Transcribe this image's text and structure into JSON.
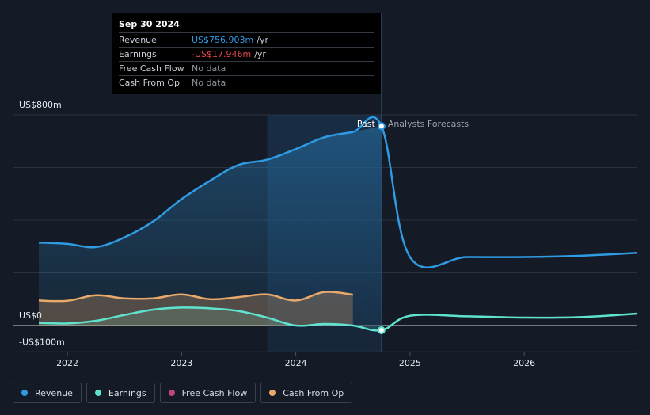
{
  "tooltip": {
    "date": "Sep 30 2024",
    "rows": [
      {
        "label": "Revenue",
        "value": "US$756.903m",
        "unit": "/yr",
        "color": "#2f9be3"
      },
      {
        "label": "Earnings",
        "value": "-US$17.946m",
        "unit": "/yr",
        "color": "#e8474d"
      },
      {
        "label": "Free Cash Flow",
        "value": "No data",
        "unit": "",
        "color": "#8b929c"
      },
      {
        "label": "Cash From Op",
        "value": "No data",
        "unit": "",
        "color": "#8b929c"
      }
    ]
  },
  "labels": {
    "past": "Past",
    "forecast": "Analysts Forecasts"
  },
  "legend": [
    {
      "label": "Revenue",
      "color": "#2f9be3"
    },
    {
      "label": "Earnings",
      "color": "#5fe3cf"
    },
    {
      "label": "Free Cash Flow",
      "color": "#c2457a"
    },
    {
      "label": "Cash From Op",
      "color": "#e8a96a"
    }
  ],
  "chart_data": {
    "type": "line",
    "y_tick_labels": [
      "US$800m",
      "US$0",
      "-US$100m"
    ],
    "ylim": [
      -100,
      800
    ],
    "x_tick_labels": [
      "2022",
      "2023",
      "2024",
      "2025",
      "2026"
    ],
    "past_end": 2024.75,
    "highlight_range": [
      2023.75,
      2024.75
    ],
    "series": [
      {
        "name": "Revenue",
        "color": "#2f9be3",
        "area": true,
        "points": [
          [
            2021.75,
            315
          ],
          [
            2022.0,
            310
          ],
          [
            2022.25,
            298
          ],
          [
            2022.5,
            335
          ],
          [
            2022.75,
            395
          ],
          [
            2023.0,
            480
          ],
          [
            2023.25,
            550
          ],
          [
            2023.5,
            610
          ],
          [
            2023.75,
            630
          ],
          [
            2024.0,
            670
          ],
          [
            2024.25,
            715
          ],
          [
            2024.5,
            735
          ],
          [
            2024.75,
            757
          ],
          [
            2025.0,
            260
          ],
          [
            2025.5,
            260
          ],
          [
            2026.0,
            260
          ],
          [
            2026.5,
            265
          ],
          [
            2026.99,
            276
          ]
        ]
      },
      {
        "name": "Earnings",
        "color": "#5fe3cf",
        "area": true,
        "points": [
          [
            2021.75,
            10
          ],
          [
            2022.0,
            8
          ],
          [
            2022.25,
            18
          ],
          [
            2022.5,
            40
          ],
          [
            2022.75,
            60
          ],
          [
            2023.0,
            68
          ],
          [
            2023.25,
            65
          ],
          [
            2023.5,
            55
          ],
          [
            2023.75,
            30
          ],
          [
            2024.0,
            0
          ],
          [
            2024.25,
            6
          ],
          [
            2024.5,
            0
          ],
          [
            2024.75,
            -18
          ],
          [
            2025.0,
            37
          ],
          [
            2025.5,
            35
          ],
          [
            2026.0,
            30
          ],
          [
            2026.5,
            32
          ],
          [
            2026.99,
            45
          ]
        ]
      },
      {
        "name": "Cash From Op",
        "color": "#e8a96a",
        "area": true,
        "points": [
          [
            2021.75,
            95
          ],
          [
            2022.0,
            94
          ],
          [
            2022.25,
            115
          ],
          [
            2022.5,
            103
          ],
          [
            2022.75,
            103
          ],
          [
            2023.0,
            118
          ],
          [
            2023.25,
            100
          ],
          [
            2023.5,
            108
          ],
          [
            2023.75,
            118
          ],
          [
            2024.0,
            95
          ],
          [
            2024.25,
            127
          ],
          [
            2024.5,
            117
          ]
        ]
      }
    ],
    "markers": [
      {
        "series": "Revenue",
        "x": 2024.75,
        "y": 757
      },
      {
        "series": "Earnings",
        "x": 2024.75,
        "y": -18
      }
    ]
  }
}
